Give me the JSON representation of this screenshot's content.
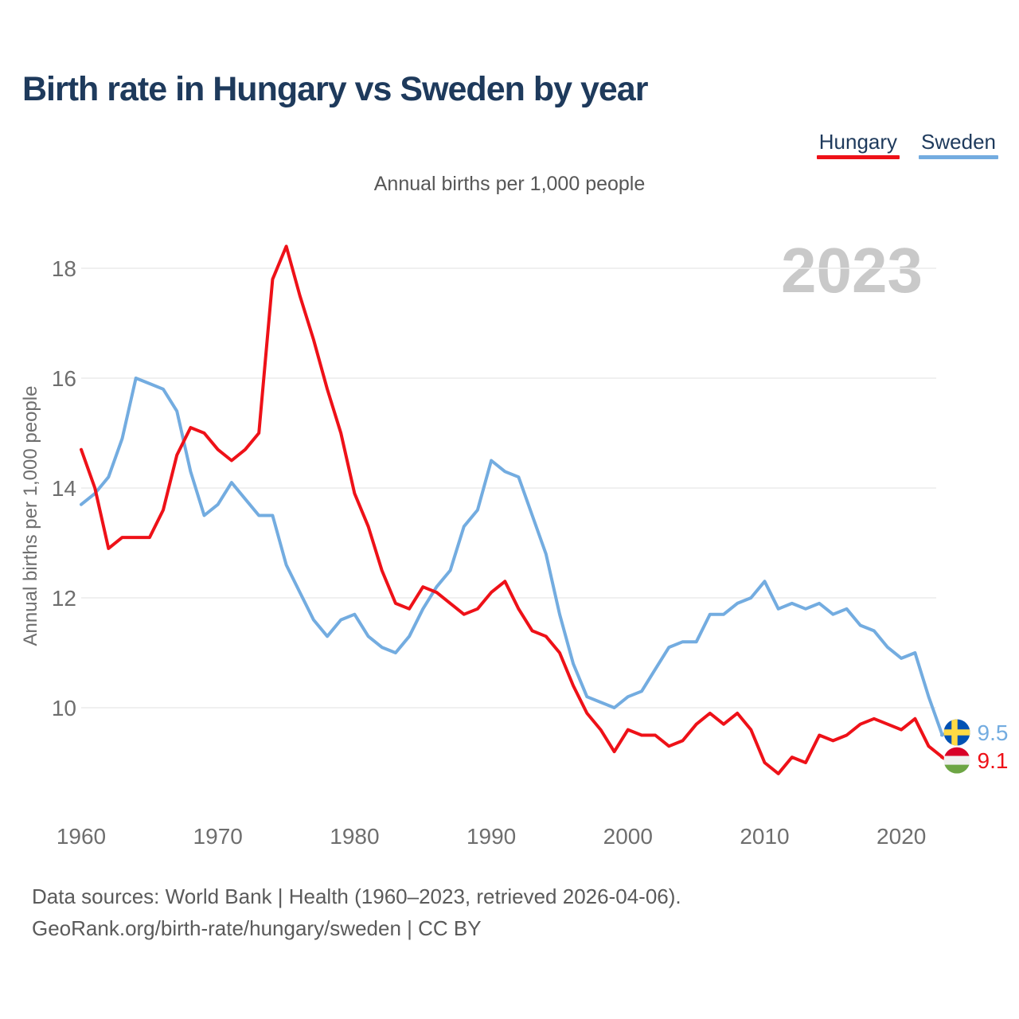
{
  "title": "Birth rate in Hungary vs Sweden by year",
  "subtitle": "Annual births per 1,000 people",
  "watermark": "2023",
  "legend": [
    {
      "label": "Hungary",
      "color": "#ee1118"
    },
    {
      "label": "Sweden",
      "color": "#73ace0"
    }
  ],
  "y_axis": {
    "label": "Annual births per 1,000 people",
    "ticks": [
      18,
      16,
      14,
      12,
      10
    ]
  },
  "x_axis": {
    "ticks": [
      1960,
      1970,
      1980,
      1990,
      2000,
      2010,
      2020
    ]
  },
  "footer": {
    "line1": "Data sources: World Bank | Health (1960–2023, retrieved 2026-04-06).",
    "line2": "GeoRank.org/birth-rate/hungary/sweden | CC BY"
  },
  "chart_data": {
    "type": "line",
    "title": "Birth rate in Hungary vs Sweden by year",
    "ylabel": "Annual births per 1,000 people",
    "xlim": [
      1960,
      2023
    ],
    "ylim": [
      8.5,
      18.6
    ],
    "grid": true,
    "legend_position": "top-right",
    "x": [
      1960,
      1961,
      1962,
      1963,
      1964,
      1965,
      1966,
      1967,
      1968,
      1969,
      1970,
      1971,
      1972,
      1973,
      1974,
      1975,
      1976,
      1977,
      1978,
      1979,
      1980,
      1981,
      1982,
      1983,
      1984,
      1985,
      1986,
      1987,
      1988,
      1989,
      1990,
      1991,
      1992,
      1993,
      1994,
      1995,
      1996,
      1997,
      1998,
      1999,
      2000,
      2001,
      2002,
      2003,
      2004,
      2005,
      2006,
      2007,
      2008,
      2009,
      2010,
      2011,
      2012,
      2013,
      2014,
      2015,
      2016,
      2017,
      2018,
      2019,
      2020,
      2021,
      2022,
      2023
    ],
    "series": [
      {
        "name": "Hungary",
        "color": "#ee1118",
        "flag": "hungary",
        "end_label": "9.1",
        "end_value": 9.1,
        "values": [
          14.7,
          14.0,
          12.9,
          13.1,
          13.1,
          13.1,
          13.6,
          14.6,
          15.1,
          15.0,
          14.7,
          14.5,
          14.7,
          15.0,
          17.8,
          18.4,
          17.5,
          16.7,
          15.8,
          15.0,
          13.9,
          13.3,
          12.5,
          11.9,
          11.8,
          12.2,
          12.1,
          11.9,
          11.7,
          11.8,
          12.1,
          12.3,
          11.8,
          11.4,
          11.3,
          11.0,
          10.4,
          9.9,
          9.6,
          9.2,
          9.6,
          9.5,
          9.5,
          9.3,
          9.4,
          9.7,
          9.9,
          9.7,
          9.9,
          9.6,
          9.0,
          8.8,
          9.1,
          9.0,
          9.5,
          9.4,
          9.5,
          9.7,
          9.8,
          9.7,
          9.6,
          9.8,
          9.3,
          9.1
        ]
      },
      {
        "name": "Sweden",
        "color": "#73ace0",
        "flag": "sweden",
        "end_label": "9.5",
        "end_value": 9.5,
        "values": [
          13.7,
          13.9,
          14.2,
          14.9,
          16.0,
          15.9,
          15.8,
          15.4,
          14.3,
          13.5,
          13.7,
          14.1,
          13.8,
          13.5,
          13.5,
          12.6,
          12.1,
          11.6,
          11.3,
          11.6,
          11.7,
          11.3,
          11.1,
          11.0,
          11.3,
          11.8,
          12.2,
          12.5,
          13.3,
          13.6,
          14.5,
          14.3,
          14.2,
          13.5,
          12.8,
          11.7,
          10.8,
          10.2,
          10.1,
          10.0,
          10.2,
          10.3,
          10.7,
          11.1,
          11.2,
          11.2,
          11.7,
          11.7,
          11.9,
          12.0,
          12.3,
          11.8,
          11.9,
          11.8,
          11.9,
          11.7,
          11.8,
          11.5,
          11.4,
          11.1,
          10.9,
          11.0,
          10.2,
          9.5
        ]
      }
    ],
    "flag_colors": {
      "sweden": {
        "field": "#0052B4",
        "cross": "#FFDA44"
      },
      "hungary": {
        "stripes": [
          "#D80027",
          "#F0F0F0",
          "#6DA544"
        ]
      }
    }
  },
  "style": {
    "grid_color": "#ececec",
    "tick_color": "#6e6e6e",
    "watermark_color": "#c9c9c9",
    "axis_label_color": "#6e6e6e"
  }
}
